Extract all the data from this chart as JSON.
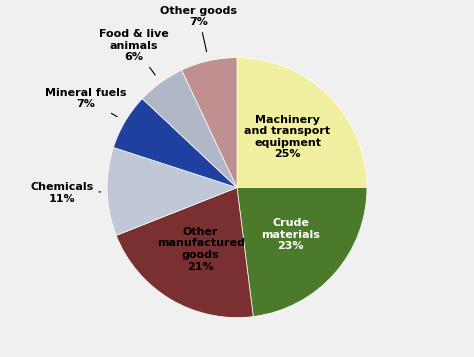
{
  "labels": [
    "Machinery\nand transport\nequipment\n25%",
    "Crude\nmaterials\n23%",
    "Other\nmanufactured\ngoods\n21%",
    "Chemicals\n11%",
    "Mineral fuels\n7%",
    "Food & live\nanimals\n6%",
    "Other goods\n7%"
  ],
  "values": [
    25,
    23,
    21,
    11,
    7,
    6,
    7
  ],
  "colors": [
    "#f0f0a0",
    "#4a7a2a",
    "#7a3030",
    "#c0c8d8",
    "#2040a0",
    "#b0b8c8",
    "#c09090"
  ],
  "startangle": 90,
  "background_color": "#f0f0f0"
}
